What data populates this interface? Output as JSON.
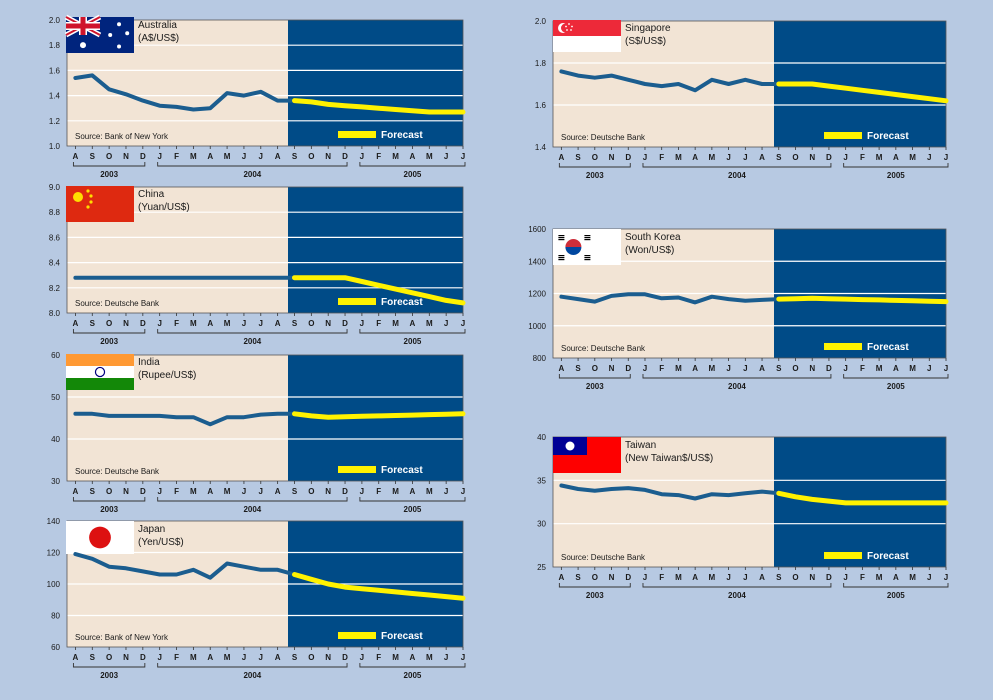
{
  "colors": {
    "page_bg": "#b7c9e2",
    "history_bg": "#f2e4d5",
    "forecast_bg": "#004b87",
    "line": "#1b5d8f",
    "forecast_line": "#fff200",
    "grid": "#ffffff",
    "text": "#1a1a1a"
  },
  "months": [
    "A",
    "S",
    "O",
    "N",
    "D",
    "J",
    "F",
    "M",
    "A",
    "M",
    "J",
    "J",
    "A",
    "S",
    "O",
    "N",
    "D",
    "J",
    "F",
    "M",
    "A",
    "M",
    "J",
    "J"
  ],
  "years": [
    "2003",
    "2004",
    "2005"
  ],
  "forecast_label": "Forecast",
  "chart_data": [
    {
      "type": "line",
      "country": "Australia",
      "unit": "(A$/US$)",
      "flag": "australia",
      "source": "Source: Bank of New York",
      "ylim": [
        1.0,
        2.0
      ],
      "yticks": [
        "2.0",
        "1.8",
        "1.6",
        "1.4",
        "1.2",
        "1.0"
      ],
      "history": [
        1.54,
        1.56,
        1.45,
        1.41,
        1.36,
        1.32,
        1.31,
        1.29,
        1.3,
        1.42,
        1.4,
        1.43,
        1.36,
        1.36
      ],
      "forecast": [
        1.36,
        1.35,
        1.33,
        1.32,
        1.31,
        1.3,
        1.29,
        1.28,
        1.27,
        1.27,
        1.27
      ]
    },
    {
      "type": "line",
      "country": "China",
      "unit": "(Yuan/US$)",
      "flag": "china",
      "source": "Source: Deutsche Bank",
      "ylim": [
        8.0,
        9.0
      ],
      "yticks": [
        "9.0",
        "8.8",
        "8.6",
        "8.4",
        "8.2",
        "8.0"
      ],
      "history": [
        8.28,
        8.28,
        8.28,
        8.28,
        8.28,
        8.28,
        8.28,
        8.28,
        8.28,
        8.28,
        8.28,
        8.28,
        8.28,
        8.28
      ],
      "forecast": [
        8.28,
        8.28,
        8.28,
        8.28,
        8.25,
        8.22,
        8.19,
        8.16,
        8.13,
        8.1,
        8.08
      ]
    },
    {
      "type": "line",
      "country": "India",
      "unit": "(Rupee/US$)",
      "flag": "india",
      "source": "Source: Deutsche Bank",
      "ylim": [
        30,
        60
      ],
      "yticks": [
        "60",
        "50",
        "40",
        "30"
      ],
      "history": [
        46,
        46,
        45.5,
        45.5,
        45.5,
        45.5,
        45.2,
        45.2,
        43.5,
        45.2,
        45.2,
        45.8,
        46,
        46
      ],
      "forecast": [
        46,
        45.5,
        45.2,
        45.3,
        45.4,
        45.5,
        45.6,
        45.7,
        45.8,
        45.9,
        46
      ]
    },
    {
      "type": "line",
      "country": "Japan",
      "unit": "(Yen/US$)",
      "flag": "japan",
      "source": "Source: Bank of New York",
      "ylim": [
        60,
        140
      ],
      "yticks": [
        "140",
        "120",
        "100",
        "80",
        "60"
      ],
      "history": [
        119,
        116,
        111,
        110,
        108,
        106,
        106,
        109,
        104,
        113,
        111,
        109,
        109,
        106
      ],
      "forecast": [
        106,
        103,
        100,
        98,
        97,
        96,
        95,
        94,
        93,
        92,
        91
      ]
    },
    {
      "type": "line",
      "country": "Singapore",
      "unit": "(S$/US$)",
      "flag": "singapore",
      "source": "Source: Deutsche Bank",
      "ylim": [
        1.4,
        2.0
      ],
      "yticks": [
        "2.0",
        "1.8",
        "1.6",
        "1.4"
      ],
      "history": [
        1.76,
        1.74,
        1.73,
        1.74,
        1.72,
        1.7,
        1.69,
        1.7,
        1.67,
        1.72,
        1.7,
        1.72,
        1.7,
        1.7
      ],
      "forecast": [
        1.7,
        1.7,
        1.7,
        1.69,
        1.68,
        1.67,
        1.66,
        1.65,
        1.64,
        1.63,
        1.62
      ]
    },
    {
      "type": "line",
      "country": "South Korea",
      "unit": "(Won/US$)",
      "flag": "korea",
      "source": "Source: Deutsche Bank",
      "ylim": [
        800,
        1600
      ],
      "yticks": [
        "1600",
        "1400",
        "1200",
        "1000",
        "800"
      ],
      "history": [
        1180,
        1165,
        1150,
        1185,
        1195,
        1195,
        1170,
        1175,
        1145,
        1180,
        1165,
        1155,
        1160,
        1165
      ],
      "forecast": [
        1165,
        1168,
        1170,
        1168,
        1165,
        1162,
        1160,
        1157,
        1155,
        1152,
        1150
      ]
    },
    {
      "type": "line",
      "country": "Taiwan",
      "unit": "(New Taiwan$/US$)",
      "flag": "taiwan",
      "source": "Source: Deutsche Bank",
      "ylim": [
        25,
        40
      ],
      "yticks": [
        "40",
        "35",
        "30",
        "25"
      ],
      "history": [
        34.4,
        34.0,
        33.8,
        34.0,
        34.1,
        33.9,
        33.4,
        33.3,
        32.9,
        33.4,
        33.3,
        33.5,
        33.7,
        33.5
      ],
      "forecast": [
        33.5,
        33.1,
        32.8,
        32.6,
        32.4,
        32.4,
        32.4,
        32.4,
        32.4,
        32.4,
        32.4
      ]
    }
  ]
}
